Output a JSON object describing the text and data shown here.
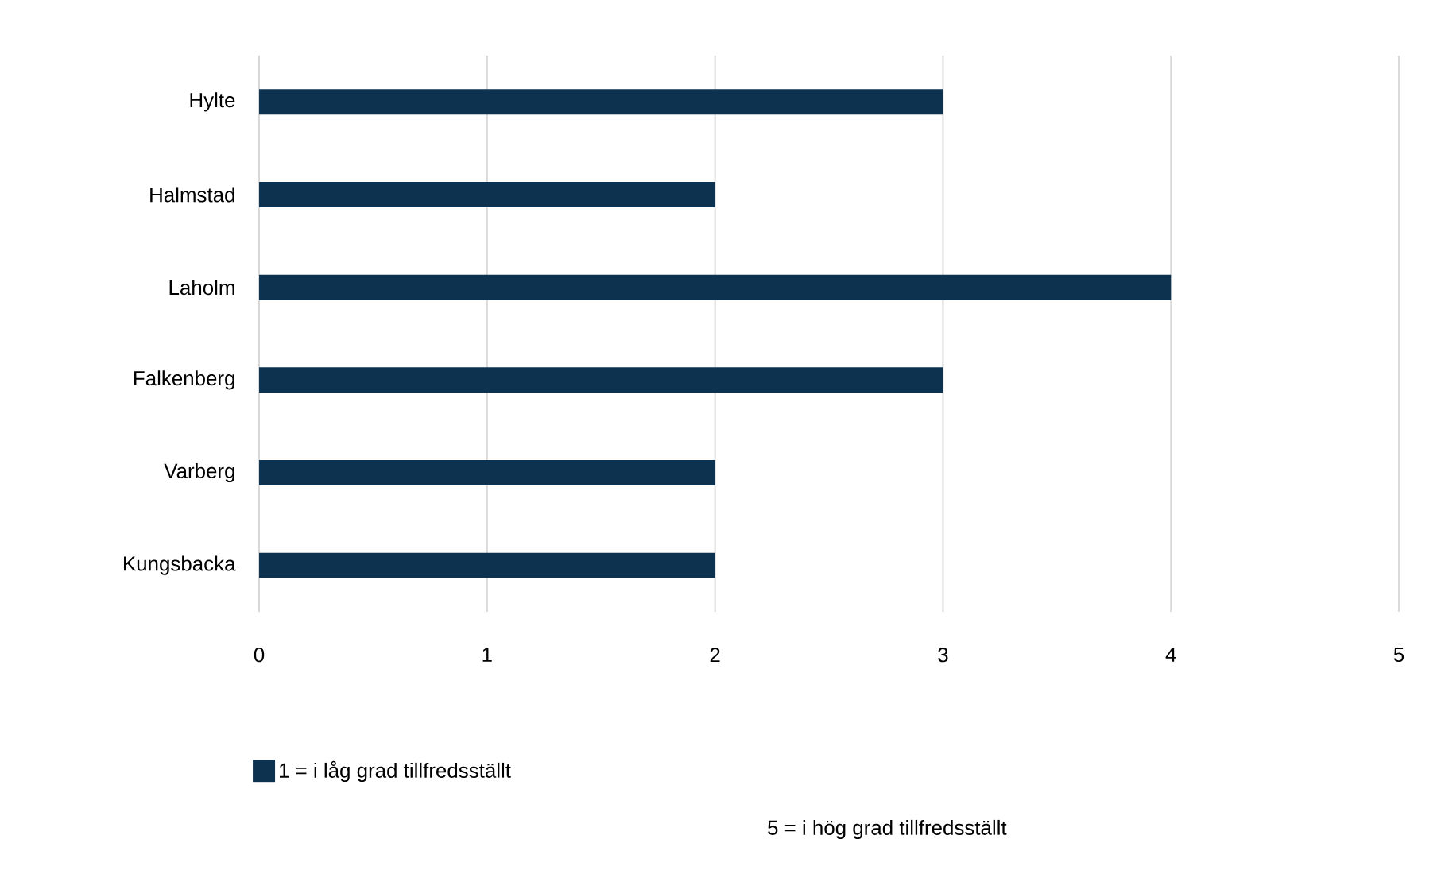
{
  "chart_data": {
    "type": "bar",
    "orientation": "horizontal",
    "categories": [
      "Hylte",
      "Halmstad",
      "Laholm",
      "Falkenberg",
      "Varberg",
      "Kungsbacka"
    ],
    "series": [
      {
        "name": "1 = i låg grad tillfredsställt",
        "color": "#0d3250",
        "values": [
          3,
          2,
          4,
          3,
          2,
          2
        ]
      }
    ],
    "xlim": [
      0,
      5
    ],
    "xticks": [
      0,
      1,
      2,
      3,
      4,
      5
    ],
    "grid": "x",
    "legend": "bottom",
    "annotations": [
      "5 = i hög grad tillfredsställt"
    ]
  }
}
